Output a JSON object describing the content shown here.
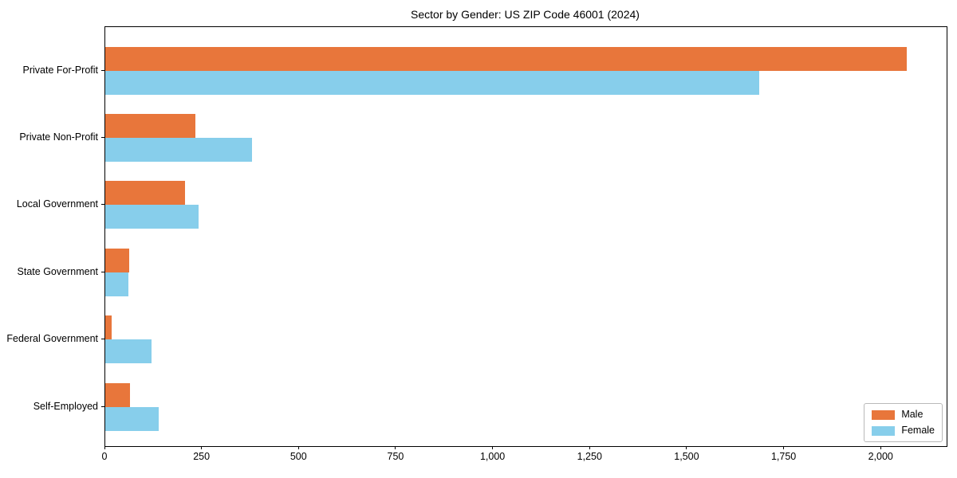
{
  "title": "Sector by Gender: US ZIP Code 46001 (2024)",
  "chart_data": {
    "type": "bar",
    "orientation": "horizontal",
    "title": "Sector by Gender: US ZIP Code 46001 (2024)",
    "xlabel": "",
    "ylabel": "",
    "categories": [
      "Private For-Profit",
      "Private Non-Profit",
      "Local Government",
      "State Government",
      "Federal Government",
      "Self-Employed"
    ],
    "series": [
      {
        "name": "Male",
        "color": "#e8763b",
        "values": [
          2065,
          232,
          205,
          62,
          16,
          64
        ]
      },
      {
        "name": "Female",
        "color": "#87ceeb",
        "values": [
          1685,
          378,
          240,
          60,
          119,
          138
        ]
      }
    ],
    "xlim": [
      0,
      2168
    ],
    "x_ticks": [
      0,
      250,
      500,
      750,
      1000,
      1250,
      1500,
      1750,
      2000
    ],
    "x_tick_labels": [
      "0",
      "250",
      "500",
      "750",
      "1,000",
      "1,250",
      "1,500",
      "1,750",
      "2,000"
    ],
    "grid": false,
    "legend": {
      "position": "lower right",
      "entries": [
        {
          "label": "Male",
          "color": "#e8763b"
        },
        {
          "label": "Female",
          "color": "#87ceeb"
        }
      ]
    }
  }
}
